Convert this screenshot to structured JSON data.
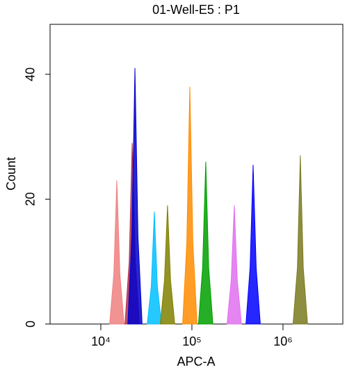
{
  "chart_data": {
    "type": "histogram-overlay",
    "title": "01-Well-E5 : P1",
    "x_label": "APC-A",
    "y_label": "Count",
    "x_scale": "log",
    "xlim": [
      2773,
      4540000
    ],
    "xticks": [
      {
        "value": 10000,
        "label": "10⁴"
      },
      {
        "value": 100000,
        "label": "10⁵"
      },
      {
        "value": 1000000,
        "label": "10⁶"
      }
    ],
    "ylim": [
      0,
      48
    ],
    "yticks": [
      0,
      20,
      40
    ],
    "series": [
      {
        "color": "#f08080",
        "x": [
          12500,
          13900,
          15000,
          16200,
          18000
        ],
        "values": [
          0,
          8,
          23,
          8,
          0
        ]
      },
      {
        "color": "#b03050",
        "x": [
          18400,
          20500,
          22100,
          23900,
          26500
        ],
        "values": [
          0,
          10,
          29,
          10,
          0
        ]
      },
      {
        "color": "#0000cc",
        "x": [
          19800,
          21900,
          23700,
          25600,
          28400
        ],
        "values": [
          0,
          14,
          41,
          14,
          0
        ]
      },
      {
        "color": "#00bfff",
        "x": [
          32300,
          35800,
          38700,
          41800,
          46400
        ],
        "values": [
          0,
          6,
          18,
          6,
          0
        ]
      },
      {
        "color": "#808000",
        "x": [
          45000,
          50000,
          54000,
          58300,
          64800
        ],
        "values": [
          0,
          7,
          19,
          7,
          0
        ]
      },
      {
        "color": "#ff8c00",
        "x": [
          79100,
          87900,
          94900,
          102500,
          113900
        ],
        "values": [
          0,
          13,
          38,
          13,
          0
        ]
      },
      {
        "color": "#00a000",
        "x": [
          118000,
          131000,
          142000,
          153000,
          170000
        ],
        "values": [
          0,
          9,
          26,
          9,
          0
        ]
      },
      {
        "color": "#e070f0",
        "x": [
          243000,
          270000,
          292000,
          315000,
          350000
        ],
        "values": [
          0,
          7,
          19,
          7,
          0
        ]
      },
      {
        "color": "#0000ff",
        "x": [
          392000,
          435000,
          470000,
          508000,
          564000
        ],
        "values": [
          0,
          9,
          25.5,
          9,
          0
        ]
      },
      {
        "color": "#7a7a20",
        "x": [
          1290000,
          1440000,
          1550000,
          1670000,
          1860000
        ],
        "values": [
          0,
          9,
          27,
          9,
          0
        ]
      }
    ]
  }
}
